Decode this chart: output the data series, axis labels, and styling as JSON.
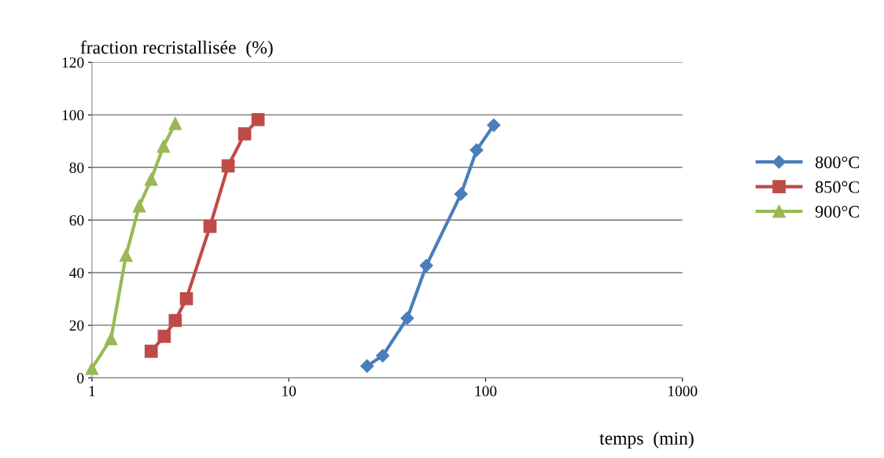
{
  "chart_data": {
    "type": "line",
    "ylabel": "fraction recristallisée  (%)",
    "xlabel": "temps  (min)",
    "log": "x",
    "xlim": [
      1,
      1000
    ],
    "xticks": [
      1,
      10,
      100,
      1000
    ],
    "ylim": [
      0,
      120
    ],
    "yticks": [
      0,
      20,
      40,
      60,
      80,
      100,
      120
    ],
    "grid": "y",
    "legend": "right",
    "line_style": "solid",
    "series": [
      {
        "name": "800°C",
        "color": "#4a7ebb",
        "marker": "diamond",
        "x": [
          25,
          30,
          40,
          50,
          75,
          90,
          110
        ],
        "values": [
          4.5,
          8.4,
          22.7,
          42.7,
          69.9,
          86.6,
          96.1
        ]
      },
      {
        "name": "850°C",
        "color": "#be4b48",
        "marker": "square",
        "x": [
          2.0,
          2.33,
          2.65,
          3.02,
          3.98,
          4.92,
          5.97,
          6.98
        ],
        "values": [
          10.1,
          15.8,
          21.8,
          30.1,
          57.6,
          80.6,
          92.8,
          98.2
        ]
      },
      {
        "name": "900°C",
        "color": "#98b954",
        "marker": "triangle",
        "x": [
          1,
          1.25,
          1.49,
          1.74,
          2.0,
          2.31,
          2.65
        ],
        "values": [
          3.6,
          14.9,
          46.6,
          65.4,
          75.5,
          88.1,
          96.7
        ]
      }
    ]
  }
}
